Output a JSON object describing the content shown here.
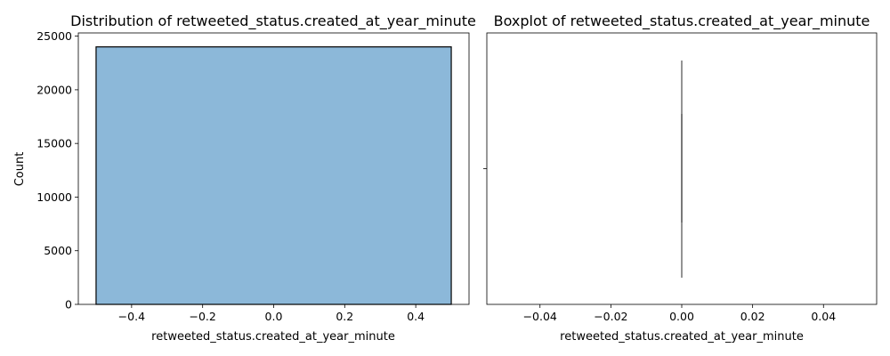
{
  "chart_data": [
    {
      "type": "histogram",
      "title": "Distribution of retweeted_status.created_at_year_minute",
      "xlabel": "retweeted_status.created_at_year_minute",
      "ylabel": "Count",
      "xlim": [
        -0.55,
        0.55
      ],
      "ylim": [
        0,
        25300
      ],
      "xticks": [
        -0.4,
        -0.2,
        0.0,
        0.2,
        0.4
      ],
      "xtick_labels": [
        "−0.4",
        "−0.2",
        "0.0",
        "0.2",
        "0.4"
      ],
      "yticks": [
        0,
        5000,
        10000,
        15000,
        20000,
        25000
      ],
      "ytick_labels": [
        "0",
        "5000",
        "10000",
        "15000",
        "20000",
        "25000"
      ],
      "bins": [
        {
          "x0": -0.5,
          "x1": 0.5,
          "count": 24000
        }
      ],
      "bar_color": "#8cb8d9",
      "edge_color": "#000000",
      "grid": false
    },
    {
      "type": "boxplot",
      "title": "Boxplot of retweeted_status.created_at_year_minute",
      "xlabel": "retweeted_status.created_at_year_minute",
      "ylabel": "",
      "xlim": [
        -0.055,
        0.055
      ],
      "xticks": [
        -0.04,
        -0.02,
        0.0,
        0.02,
        0.04
      ],
      "xtick_labels": [
        "−0.04",
        "−0.02",
        "0.00",
        "0.02",
        "0.04"
      ],
      "box": {
        "min": 0,
        "q1": 0,
        "median": 0,
        "q3": 0,
        "max": 0
      },
      "box_color": "#4c4c4c",
      "grid": false
    }
  ]
}
